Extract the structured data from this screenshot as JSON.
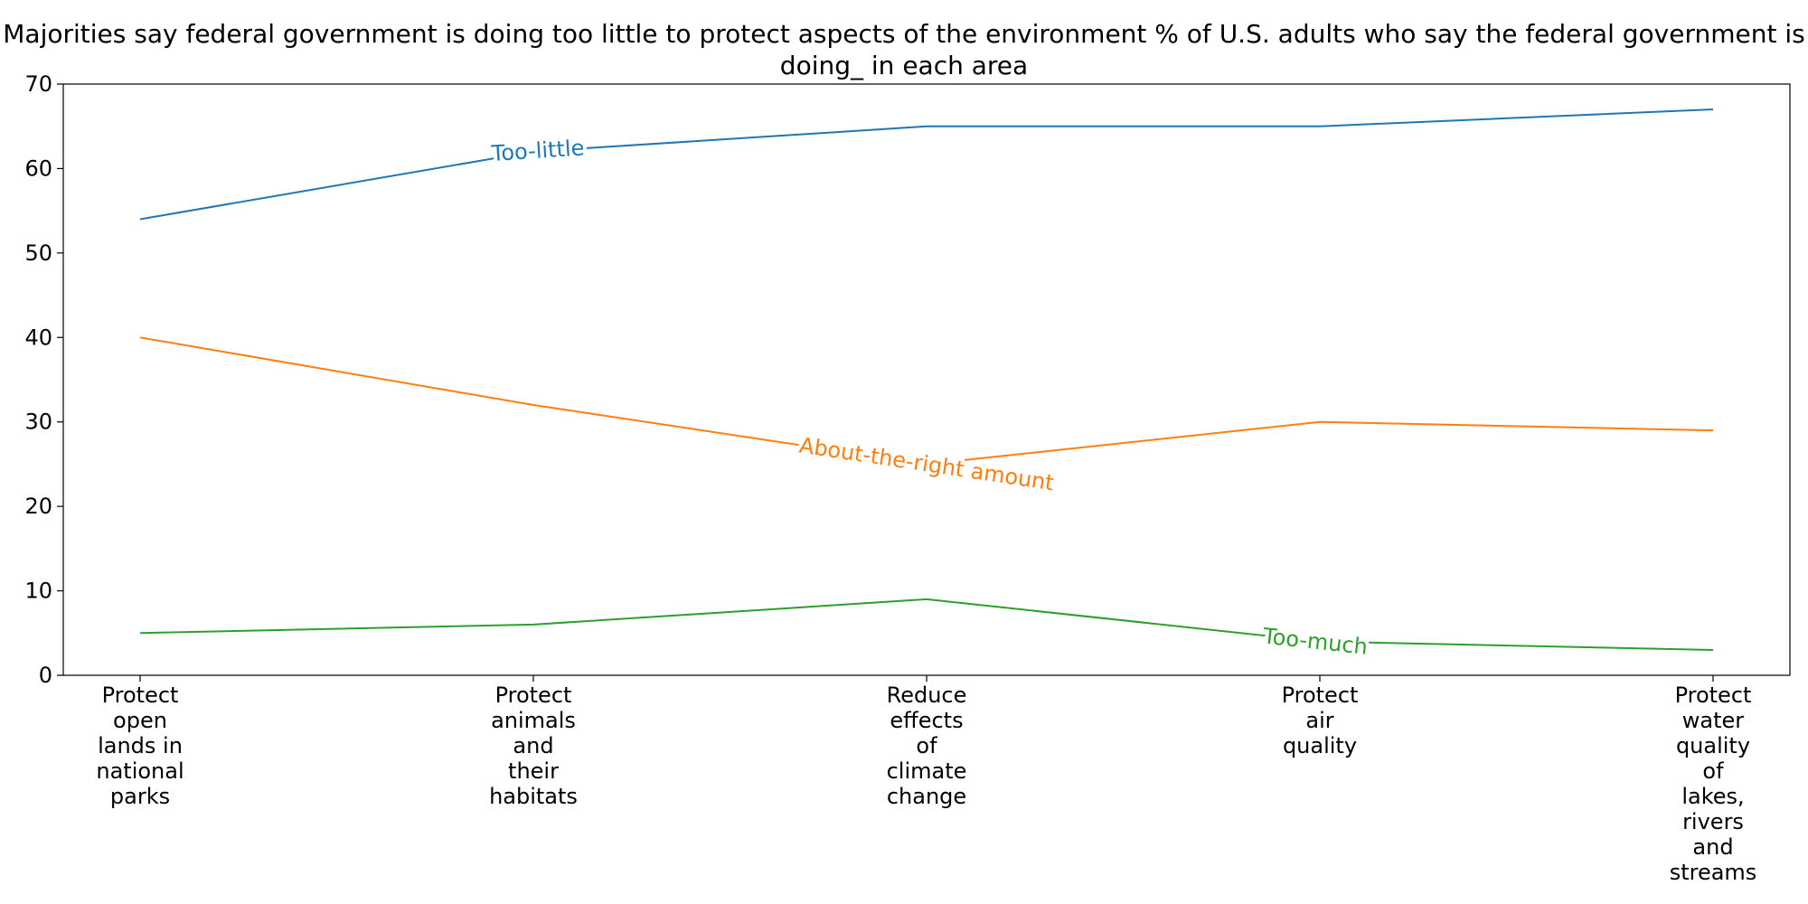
{
  "chart_data": {
    "type": "line",
    "title": "Majorities say federal government is doing too little to protect aspects of the environment % of U.S. adults who say the federal government is doing_ in each area",
    "xlabel": "",
    "ylabel": "",
    "categories": [
      "Protect open lands in national parks",
      "Protect animals and their habitats",
      "Reduce effects of climate change",
      "Protect air quality",
      "Protect water quality of lakes, rivers and streams"
    ],
    "ylim": [
      0,
      70
    ],
    "yticks": [
      0,
      10,
      20,
      30,
      40,
      50,
      60,
      70
    ],
    "grid": false,
    "legend": "none (inline labels on lines)",
    "series": [
      {
        "name": "Too-little",
        "color": "#1f77b4",
        "values": [
          54,
          62,
          65,
          65,
          67
        ]
      },
      {
        "name": "About-the-right amount",
        "color": "#ff7f0e",
        "values": [
          40,
          32,
          25,
          30,
          29
        ]
      },
      {
        "name": "Too-much",
        "color": "#2ca02c",
        "values": [
          5,
          6,
          9,
          4,
          3
        ]
      }
    ]
  }
}
